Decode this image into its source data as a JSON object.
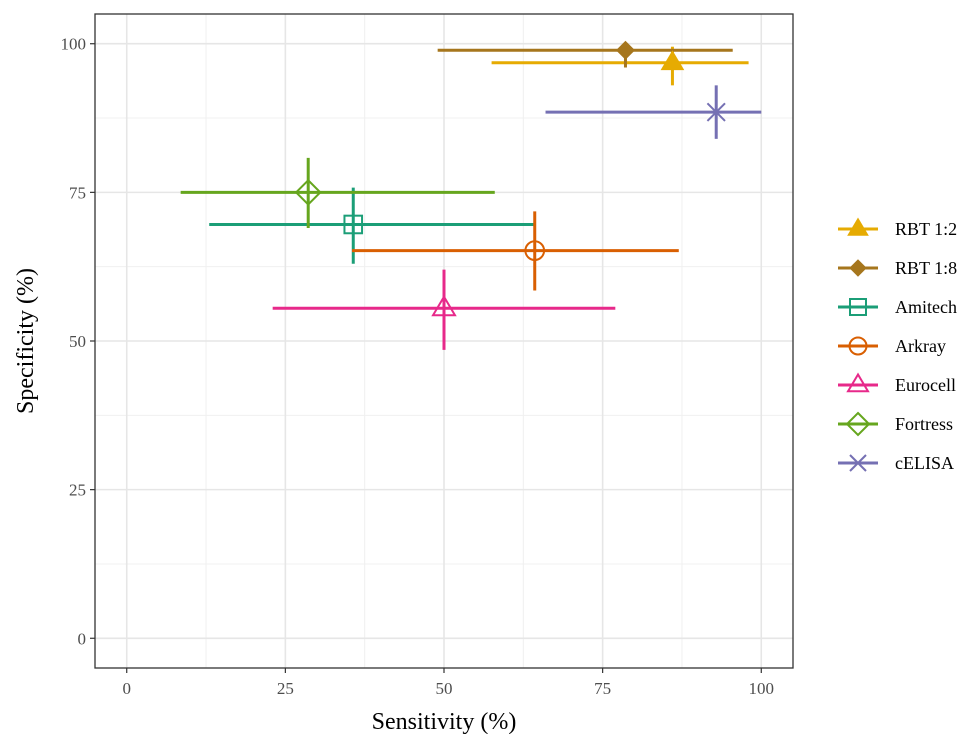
{
  "chart_data": {
    "type": "scatter",
    "title": "",
    "xlabel": "Sensitivity (%)",
    "ylabel": "Specificity (%)",
    "xlim": [
      -5,
      105
    ],
    "ylim": [
      -5,
      105
    ],
    "x_ticks": [
      0,
      25,
      50,
      75,
      100
    ],
    "y_ticks": [
      0,
      25,
      50,
      75,
      100
    ],
    "x_tick_labels": [
      "0",
      "25",
      "50",
      "75",
      "100"
    ],
    "y_tick_labels": [
      "0",
      "25",
      "50",
      "75",
      "100"
    ],
    "grid": true,
    "legend_position": "right",
    "series": [
      {
        "name": "RBT 1:2",
        "color": "#E6AB02",
        "marker": "triangle-filled",
        "x": 86.0,
        "x_low": 57.5,
        "x_high": 98.0,
        "y": 96.8,
        "y_low": 93.0,
        "y_high": 99.5
      },
      {
        "name": "RBT 1:8",
        "color": "#A6761D",
        "marker": "diamond-filled",
        "x": 78.6,
        "x_low": 49.0,
        "x_high": 95.5,
        "y": 98.9,
        "y_low": 96.0,
        "y_high": 100.0
      },
      {
        "name": "Amitech",
        "color": "#1B9E77",
        "marker": "square-open",
        "x": 35.7,
        "x_low": 13.0,
        "x_high": 64.5,
        "y": 69.6,
        "y_low": 63.0,
        "y_high": 75.8
      },
      {
        "name": "Arkray",
        "color": "#D95F02",
        "marker": "circle-open",
        "x": 64.3,
        "x_low": 35.5,
        "x_high": 87.0,
        "y": 65.2,
        "y_low": 58.5,
        "y_high": 71.8
      },
      {
        "name": "Eurocell",
        "color": "#E7298A",
        "marker": "triangle-open",
        "x": 50.0,
        "x_low": 23.0,
        "x_high": 77.0,
        "y": 55.5,
        "y_low": 48.5,
        "y_high": 62.0
      },
      {
        "name": "Fortress",
        "color": "#66A61E",
        "marker": "diamond-open",
        "x": 28.6,
        "x_low": 8.5,
        "x_high": 58.0,
        "y": 75.0,
        "y_low": 69.0,
        "y_high": 80.8
      },
      {
        "name": "cELISA",
        "color": "#7570B3",
        "marker": "cross-x",
        "x": 92.9,
        "x_low": 66.0,
        "x_high": 100.0,
        "y": 88.5,
        "y_low": 84.0,
        "y_high": 93.0
      }
    ]
  }
}
